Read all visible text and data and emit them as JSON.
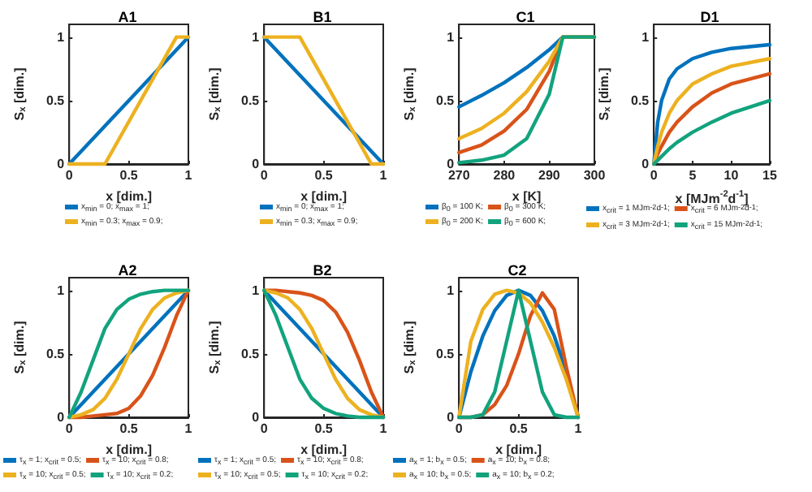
{
  "chart_data": [
    {
      "type": "line",
      "title": "A1",
      "xlabel": "x [dim.]",
      "ylabel": "S$_{x}$ [dim.]",
      "xlim": [
        0,
        1
      ],
      "xticks": [
        0,
        0.5,
        1
      ],
      "ylim": [
        0,
        1.1
      ],
      "yticks": [
        0,
        0.5,
        1
      ],
      "legend": "bottom",
      "grid": false,
      "marker": "none",
      "line_style": "solid",
      "series": [
        {
          "name": "x$_{min}$ = 0; x$_{max}$ = 1;",
          "color": "#0072bd",
          "x": [
            0,
            1
          ],
          "values": [
            0,
            1
          ]
        },
        {
          "name": "x$_{min}$ = 0.3; x$_{max}$ = 0.9;",
          "color": "#edb120",
          "x": [
            0,
            0.3,
            0.9,
            1
          ],
          "values": [
            0,
            0,
            1,
            1
          ]
        }
      ]
    },
    {
      "type": "line",
      "title": "B1",
      "xlabel": "x [dim.]",
      "ylabel": "S$_{x}$ [dim.]",
      "xlim": [
        0,
        1
      ],
      "xticks": [
        0,
        0.5,
        1
      ],
      "ylim": [
        0,
        1.1
      ],
      "yticks": [
        0,
        0.5,
        1
      ],
      "legend": "bottom",
      "grid": false,
      "marker": "none",
      "line_style": "solid",
      "series": [
        {
          "name": "x$_{min}$ = 0; x$_{max}$ = 1;",
          "color": "#0072bd",
          "x": [
            0,
            1
          ],
          "values": [
            1,
            0
          ]
        },
        {
          "name": "x$_{min}$ = 0.3; x$_{max}$ = 0.9;",
          "color": "#edb120",
          "x": [
            0,
            0.3,
            0.9,
            1
          ],
          "values": [
            1,
            1,
            0,
            0
          ]
        }
      ]
    },
    {
      "type": "line",
      "title": "C1",
      "xlabel": "x [K]",
      "ylabel": "S$_{x}$ [dim.]",
      "xlim": [
        270,
        300
      ],
      "xticks": [
        270,
        280,
        290,
        300
      ],
      "ylim": [
        0,
        1.1
      ],
      "yticks": [
        0,
        0.5,
        1
      ],
      "legend": "bottom",
      "grid": false,
      "marker": "none",
      "line_style": "solid",
      "series": [
        {
          "name": "β$_{0}$ = 100 K;",
          "color": "#0072bd",
          "x": [
            270,
            275,
            280,
            285,
            290,
            293,
            300
          ],
          "values": [
            0.45,
            0.54,
            0.64,
            0.76,
            0.9,
            1,
            1
          ]
        },
        {
          "name": "β$_{0}$ = 300 K;",
          "color": "#d95319",
          "x": [
            270,
            275,
            280,
            285,
            290,
            293,
            300
          ],
          "values": [
            0.09,
            0.15,
            0.26,
            0.43,
            0.73,
            1,
            1
          ]
        },
        {
          "name": "β$_{0}$ = 200 K;",
          "color": "#edb120",
          "x": [
            270,
            275,
            280,
            285,
            290,
            293,
            300
          ],
          "values": [
            0.2,
            0.28,
            0.4,
            0.57,
            0.81,
            1,
            1
          ]
        },
        {
          "name": "β$_{0}$ = 600 K;",
          "color": "#12a37d",
          "x": [
            270,
            275,
            280,
            285,
            290,
            293,
            300
          ],
          "values": [
            0.01,
            0.03,
            0.07,
            0.2,
            0.55,
            1,
            1
          ]
        }
      ]
    },
    {
      "type": "line",
      "title": "D1",
      "xlabel": "x [MJm$^{-2}$d$^{-1}$]",
      "ylabel": "S$_{x}$ [dim.]",
      "xlim": [
        0,
        15
      ],
      "xticks": [
        0,
        5,
        10,
        15
      ],
      "ylim": [
        0,
        1.1
      ],
      "yticks": [
        0,
        0.5,
        1
      ],
      "legend": "bottom",
      "grid": false,
      "marker": "none",
      "line_style": "solid",
      "series": [
        {
          "name": "x$_{crit}$ = 1 MJm$^{-2}$d$^{-1}$;",
          "color": "#0072bd",
          "x": [
            0,
            0.5,
            1,
            2,
            3,
            5,
            7.5,
            10,
            15
          ],
          "values": [
            0,
            0.33,
            0.5,
            0.67,
            0.75,
            0.83,
            0.88,
            0.91,
            0.94
          ]
        },
        {
          "name": "x$_{crit}$ = 6 MJm$^{-2}$d$^{-1}$;",
          "color": "#d95319",
          "x": [
            0,
            0.5,
            1,
            2,
            3,
            5,
            7.5,
            10,
            15
          ],
          "values": [
            0,
            0.08,
            0.14,
            0.25,
            0.33,
            0.45,
            0.56,
            0.63,
            0.71
          ]
        },
        {
          "name": "x$_{crit}$ = 3 MJm$^{-2}$d$^{-1}$;",
          "color": "#edb120",
          "x": [
            0,
            0.5,
            1,
            2,
            3,
            5,
            7.5,
            10,
            15
          ],
          "values": [
            0,
            0.14,
            0.25,
            0.4,
            0.5,
            0.63,
            0.71,
            0.77,
            0.83
          ]
        },
        {
          "name": "x$_{crit}$ = 15 MJm$^{-2}$d$^{-1}$;",
          "color": "#12a37d",
          "x": [
            0,
            0.5,
            1,
            2,
            3,
            5,
            7.5,
            10,
            15
          ],
          "values": [
            0,
            0.03,
            0.06,
            0.12,
            0.17,
            0.25,
            0.33,
            0.4,
            0.5
          ]
        }
      ]
    },
    {
      "type": "line",
      "title": "A2",
      "xlabel": "x [dim.]",
      "ylabel": "S$_{x}$ [dim.]",
      "xlim": [
        0,
        1
      ],
      "xticks": [
        0,
        0.5,
        1
      ],
      "ylim": [
        0,
        1.1
      ],
      "yticks": [
        0,
        0.5,
        1
      ],
      "legend": "bottom",
      "grid": false,
      "marker": "none",
      "line_style": "solid",
      "series": [
        {
          "name": "τ$_{x}$ = 1; x$_{crit}$ = 0.5;",
          "color": "#0072bd",
          "x": [
            0,
            1
          ],
          "values": [
            0,
            1
          ]
        },
        {
          "name": "τ$_{x}$ = 10; x$_{crit}$ = 0.8;",
          "color": "#d95319",
          "x": [
            0,
            0.1,
            0.2,
            0.3,
            0.4,
            0.5,
            0.6,
            0.7,
            0.8,
            0.9,
            1
          ],
          "values": [
            0,
            0,
            0.01,
            0.02,
            0.03,
            0.07,
            0.17,
            0.33,
            0.55,
            0.8,
            1
          ]
        },
        {
          "name": "τ$_{x}$ = 10; x$_{crit}$ = 0.5;",
          "color": "#edb120",
          "x": [
            0,
            0.1,
            0.2,
            0.3,
            0.4,
            0.5,
            0.6,
            0.7,
            0.8,
            0.9,
            1
          ],
          "values": [
            0,
            0.02,
            0.06,
            0.15,
            0.3,
            0.5,
            0.7,
            0.85,
            0.94,
            0.98,
            1
          ]
        },
        {
          "name": "τ$_{x}$ = 10; x$_{crit}$ = 0.2;",
          "color": "#12a37d",
          "x": [
            0,
            0.1,
            0.2,
            0.3,
            0.4,
            0.5,
            0.6,
            0.7,
            0.8,
            0.9,
            1
          ],
          "values": [
            0,
            0.2,
            0.45,
            0.7,
            0.85,
            0.93,
            0.97,
            0.99,
            1,
            1,
            1
          ]
        }
      ]
    },
    {
      "type": "line",
      "title": "B2",
      "xlabel": "x [dim.]",
      "ylabel": "S$_{x}$ [dim.]",
      "xlim": [
        0,
        1
      ],
      "xticks": [
        0,
        0.5,
        1
      ],
      "ylim": [
        0,
        1.1
      ],
      "yticks": [
        0,
        0.5,
        1
      ],
      "legend": "bottom",
      "grid": false,
      "marker": "none",
      "line_style": "solid",
      "series": [
        {
          "name": "τ$_{x}$ = 1; x$_{crit}$ = 0.5;",
          "color": "#0072bd",
          "x": [
            0,
            1
          ],
          "values": [
            1,
            0
          ]
        },
        {
          "name": "τ$_{x}$ = 10; x$_{crit}$ = 0.8;",
          "color": "#d95319",
          "x": [
            0,
            0.1,
            0.2,
            0.3,
            0.4,
            0.5,
            0.6,
            0.7,
            0.8,
            0.9,
            1
          ],
          "values": [
            1,
            1,
            0.99,
            0.98,
            0.96,
            0.92,
            0.83,
            0.67,
            0.45,
            0.2,
            0
          ]
        },
        {
          "name": "τ$_{x}$ = 10; x$_{crit}$ = 0.5;",
          "color": "#edb120",
          "x": [
            0,
            0.1,
            0.2,
            0.3,
            0.4,
            0.5,
            0.6,
            0.7,
            0.8,
            0.9,
            1
          ],
          "values": [
            1,
            0.98,
            0.94,
            0.85,
            0.7,
            0.5,
            0.3,
            0.15,
            0.06,
            0.02,
            0
          ]
        },
        {
          "name": "τ$_{x}$ = 10; x$_{crit}$ = 0.2;",
          "color": "#12a37d",
          "x": [
            0,
            0.1,
            0.2,
            0.3,
            0.4,
            0.5,
            0.6,
            0.7,
            0.8,
            0.9,
            1
          ],
          "values": [
            1,
            0.8,
            0.55,
            0.3,
            0.15,
            0.07,
            0.03,
            0.01,
            0,
            0,
            0
          ]
        }
      ]
    },
    {
      "type": "line",
      "title": "C2",
      "xlabel": "x [dim.]",
      "ylabel": "S$_{x}$ [dim.]",
      "xlim": [
        0,
        1
      ],
      "xticks": [
        0,
        0.5,
        1
      ],
      "ylim": [
        0,
        1.1
      ],
      "yticks": [
        0,
        0.5,
        1
      ],
      "legend": "bottom",
      "grid": false,
      "marker": "none",
      "line_style": "solid",
      "series": [
        {
          "name": "a$_{x}$ = 1; b$_{x}$ = 0.5;",
          "color": "#0072bd",
          "x": [
            0,
            0.1,
            0.2,
            0.3,
            0.4,
            0.5,
            0.6,
            0.7,
            0.8,
            0.9,
            1
          ],
          "values": [
            0,
            0.36,
            0.64,
            0.84,
            0.96,
            1,
            0.96,
            0.84,
            0.64,
            0.36,
            0
          ]
        },
        {
          "name": "a$_{x}$ = 10; b$_{x}$ = 0.8;",
          "color": "#d95319",
          "x": [
            0,
            0.1,
            0.2,
            0.3,
            0.4,
            0.5,
            0.6,
            0.7,
            0.8,
            0.9,
            1
          ],
          "values": [
            0,
            0,
            0.02,
            0.1,
            0.25,
            0.5,
            0.8,
            0.98,
            0.85,
            0.4,
            0
          ]
        },
        {
          "name": "a$_{x}$ = 10; b$_{x}$ = 0.5;",
          "color": "#edb120",
          "x": [
            0,
            0.1,
            0.2,
            0.3,
            0.4,
            0.5,
            0.6,
            0.7,
            0.8,
            0.9,
            1
          ],
          "values": [
            0,
            0.6,
            0.85,
            0.97,
            1,
            0.98,
            0.9,
            0.75,
            0.55,
            0.3,
            0
          ]
        },
        {
          "name": "a$_{x}$ = 10; b$_{x}$ = 0.2;",
          "color": "#12a37d",
          "x": [
            0,
            0.1,
            0.2,
            0.3,
            0.4,
            0.5,
            0.6,
            0.7,
            0.8,
            0.9,
            1
          ],
          "values": [
            0,
            0,
            0.02,
            0.2,
            0.6,
            1,
            0.6,
            0.2,
            0.02,
            0,
            0
          ]
        }
      ]
    }
  ]
}
